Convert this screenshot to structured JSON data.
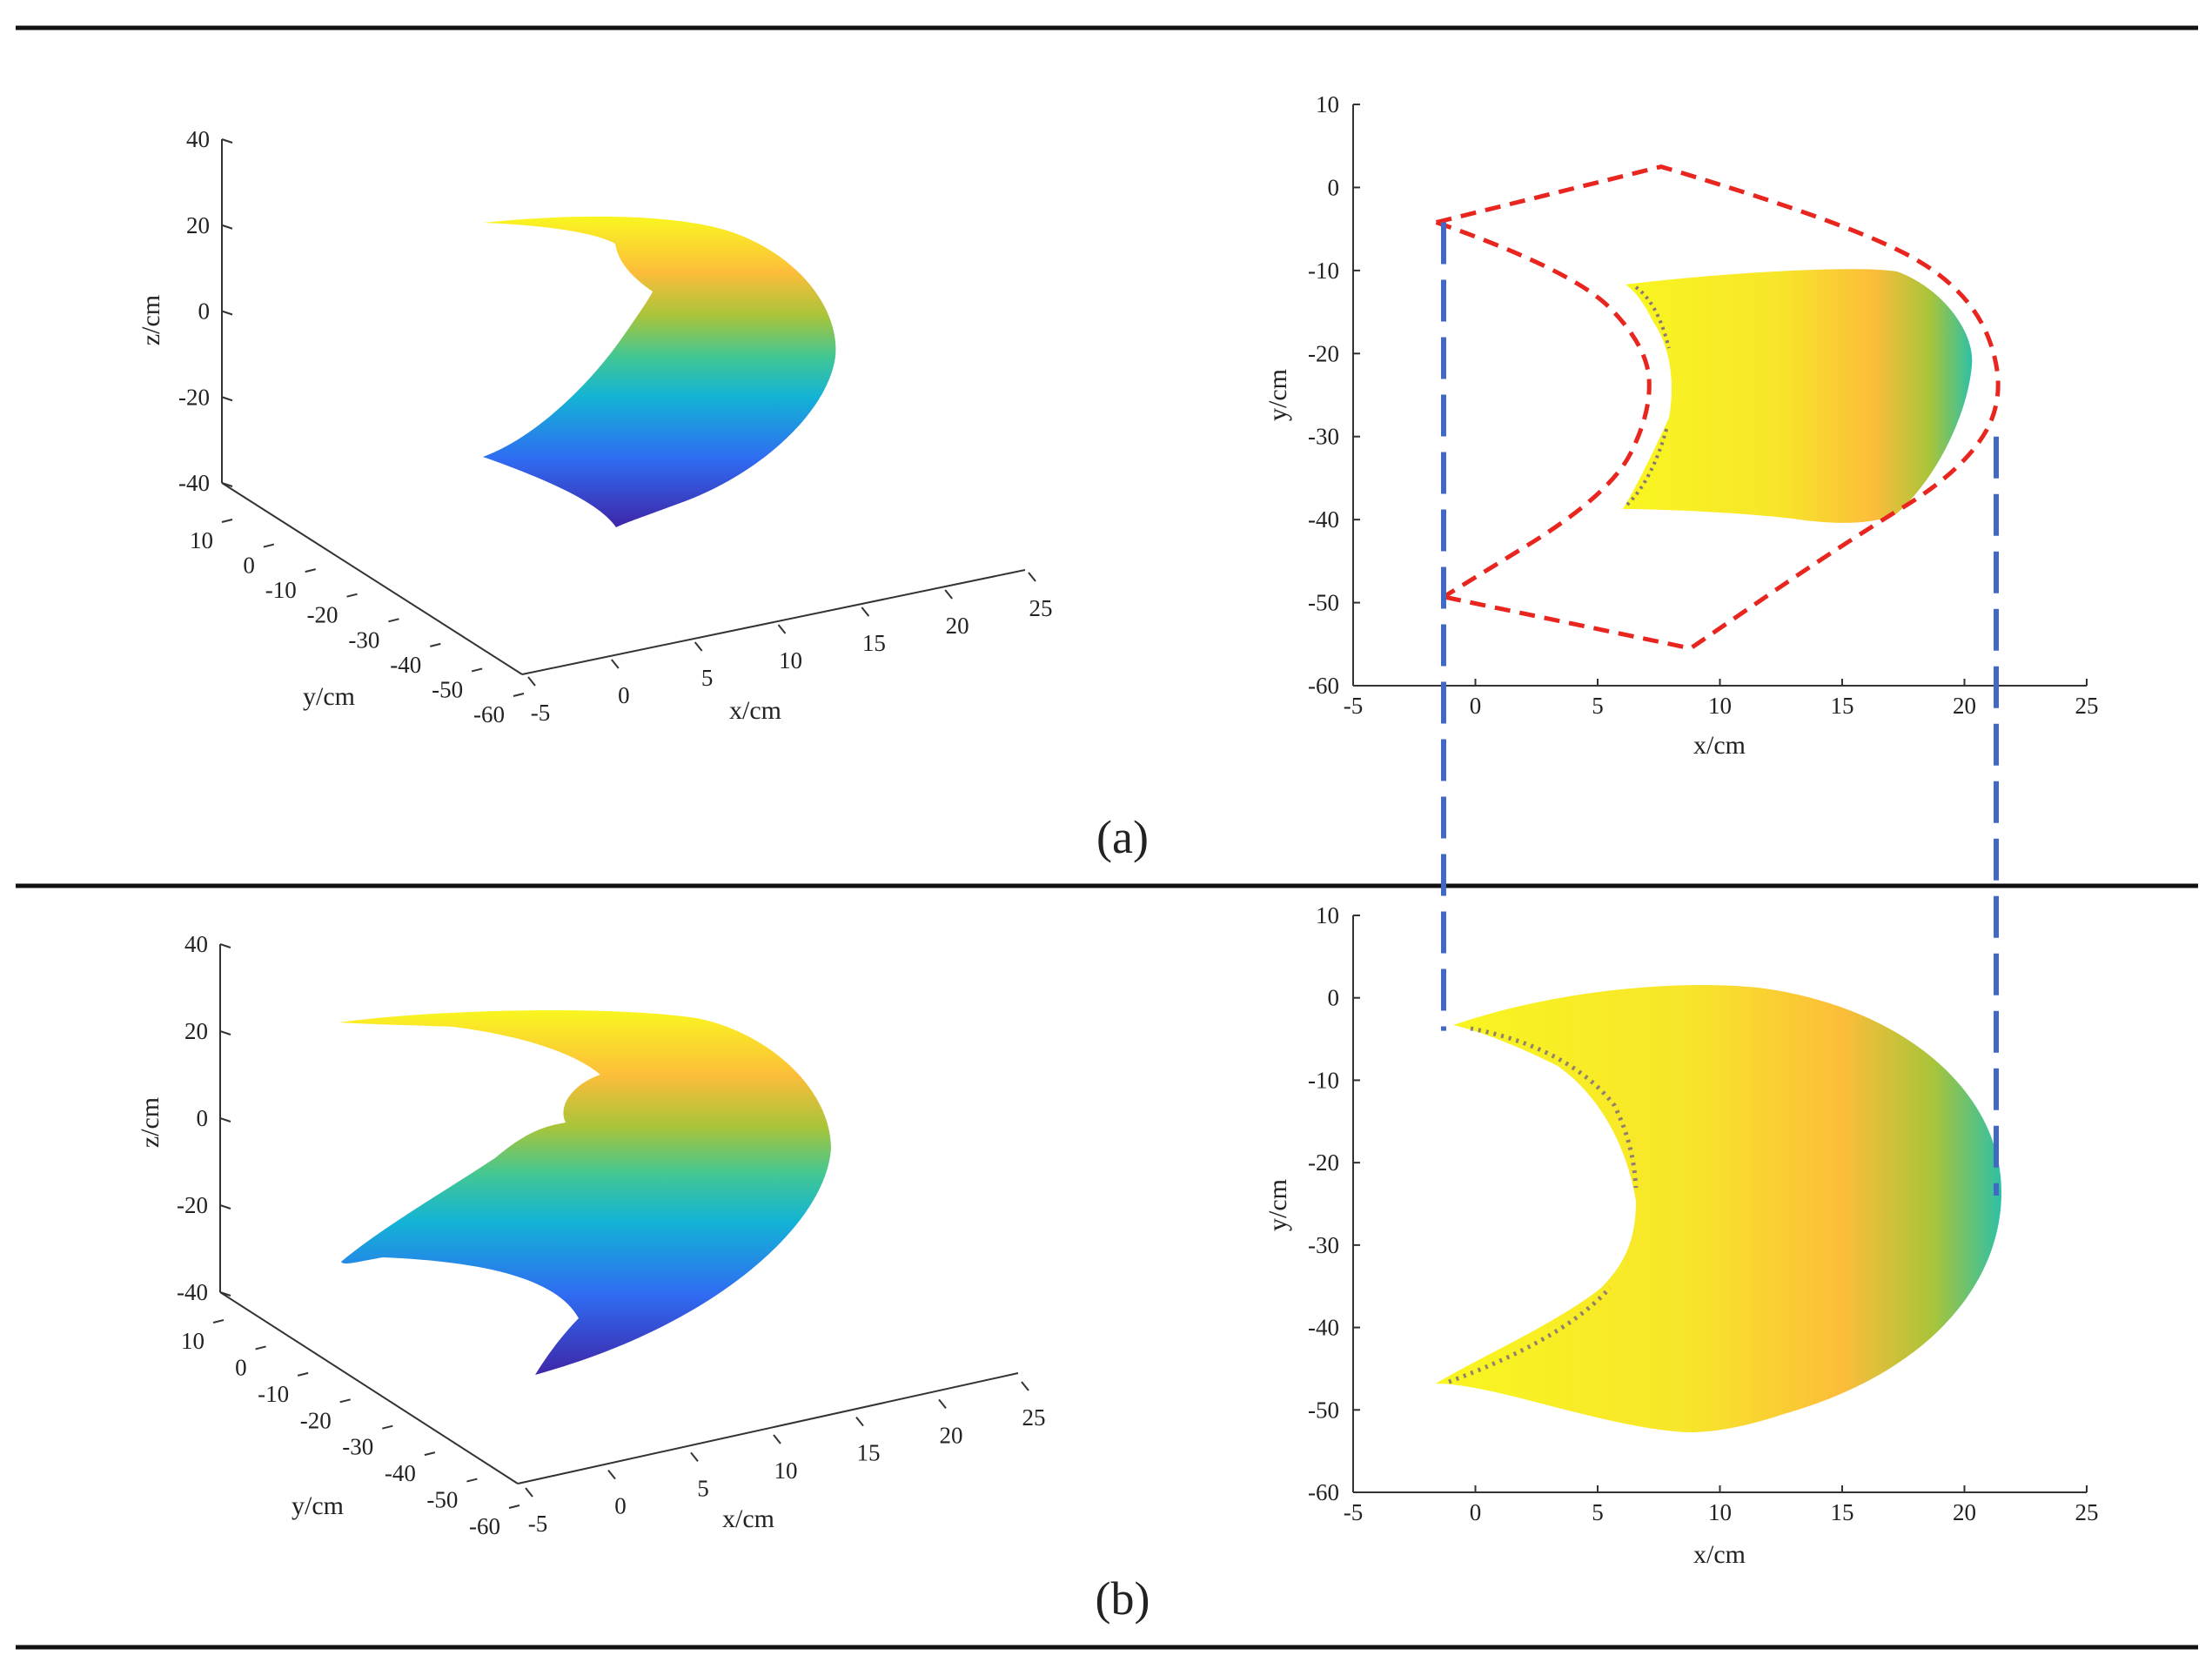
{
  "figure": {
    "captions": [
      "(a)",
      "(b)"
    ],
    "colors": {
      "rule": "#111111",
      "axis": "#333333",
      "dashed_red": "#e8261f",
      "dashed_blue": "#4169c4",
      "colormap": [
        "#3e26a8",
        "#2f6cf2",
        "#13b3d5",
        "#42c793",
        "#a8c43a",
        "#fcbd3a",
        "#f9f620"
      ]
    }
  },
  "chart_data": [
    {
      "id": "a-3d",
      "type": "scatter",
      "title": "",
      "xlabel": "x/cm",
      "ylabel": "y/cm",
      "zlabel": "z/cm",
      "xlim": [
        -5,
        25
      ],
      "ylim": [
        -60,
        10
      ],
      "zlim": [
        -40,
        40
      ],
      "xticks": [
        "-5",
        "0",
        "5",
        "10",
        "15",
        "20",
        "25"
      ],
      "yticks": [
        "10",
        "0",
        "-10",
        "-20",
        "-30",
        "-40",
        "-50",
        "-60"
      ],
      "zticks": [
        "40",
        "20",
        "0",
        "-20",
        "-40"
      ],
      "series": [
        {
          "name": "point cloud",
          "shape": "crescent",
          "x_range": [
            -2,
            21
          ],
          "y_range": [
            -41,
            -10
          ],
          "z_range": [
            -38,
            22
          ],
          "color": "by z (parula)"
        }
      ]
    },
    {
      "id": "a-top",
      "type": "scatter",
      "title": "",
      "xlabel": "x/cm",
      "ylabel": "y/cm",
      "xlim": [
        -5,
        25
      ],
      "ylim": [
        -60,
        10
      ],
      "xticks": [
        "-5",
        "0",
        "5",
        "10",
        "15",
        "20",
        "25"
      ],
      "yticks": [
        "10",
        "0",
        "-10",
        "-20",
        "-30",
        "-40",
        "-50",
        "-60"
      ],
      "series": [
        {
          "name": "point cloud",
          "shape": "crescent",
          "x_range": [
            5.5,
            21
          ],
          "y_range": [
            -41,
            -10
          ],
          "inner_notch_x": 8,
          "color": "by z (parula)"
        }
      ],
      "annotations": [
        {
          "name": "red dashed envelope",
          "style": "dashed",
          "color": "red",
          "points": [
            [
              -1.6,
              -4.2
            ],
            [
              7.6,
              2.5
            ],
            [
              15,
              -4
            ],
            [
              20.2,
              -12
            ],
            [
              21.8,
              -24.5
            ],
            [
              20,
              -34
            ],
            [
              15,
              -43
            ],
            [
              8.8,
              -55.5
            ],
            [
              -1.3,
              -49.3
            ]
          ],
          "inner_curve": [
            [
              -1.6,
              -4.2
            ],
            [
              4,
              -10
            ],
            [
              7,
              -19
            ],
            [
              7.2,
              -27
            ],
            [
              5.5,
              -37
            ],
            [
              -1.3,
              -49.3
            ]
          ]
        }
      ]
    },
    {
      "id": "b-3d",
      "type": "scatter",
      "title": "",
      "xlabel": "x/cm",
      "ylabel": "y/cm",
      "zlabel": "z/cm",
      "xlim": [
        -5,
        25
      ],
      "ylim": [
        -60,
        10
      ],
      "zlim": [
        -40,
        40
      ],
      "xticks": [
        "-5",
        "0",
        "5",
        "10",
        "15",
        "20",
        "25"
      ],
      "yticks": [
        "10",
        "0",
        "-10",
        "-20",
        "-30",
        "-40",
        "-50",
        "-60"
      ],
      "zticks": [
        "40",
        "20",
        "0",
        "-20",
        "-40"
      ],
      "series": [
        {
          "name": "point cloud",
          "shape": "crescent",
          "x_range": [
            -2,
            21
          ],
          "y_range": [
            -53,
            2
          ],
          "z_range": [
            -38,
            22
          ],
          "color": "by z (parula)"
        }
      ]
    },
    {
      "id": "b-top",
      "type": "scatter",
      "title": "",
      "xlabel": "x/cm",
      "ylabel": "y/cm",
      "xlim": [
        -5,
        25
      ],
      "ylim": [
        -60,
        10
      ],
      "xticks": [
        "-5",
        "0",
        "5",
        "10",
        "15",
        "20",
        "25"
      ],
      "yticks": [
        "10",
        "0",
        "-10",
        "-20",
        "-30",
        "-40",
        "-50",
        "-60"
      ],
      "series": [
        {
          "name": "point cloud",
          "shape": "crescent",
          "x_range": [
            -0.5,
            21.3
          ],
          "y_range": [
            -53,
            2
          ],
          "inner_notch_x": 7,
          "color": "by z (parula)"
        }
      ],
      "annotations": [
        {
          "name": "blue dashed reference lines",
          "style": "dashed",
          "color": "blue",
          "x_values": [
            -1.3,
            21.3
          ],
          "from": "a-top",
          "to": "b-top"
        }
      ]
    }
  ]
}
